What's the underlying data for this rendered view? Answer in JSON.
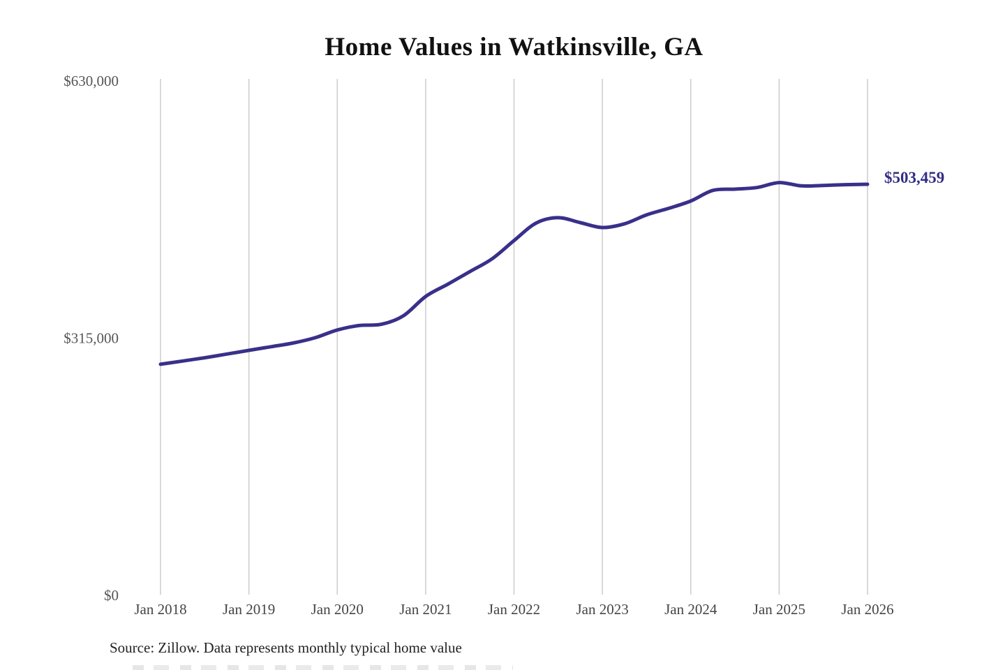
{
  "title": "Home Values in Watkinsville, GA",
  "source_note": "Source: Zillow. Data represents monthly typical home value",
  "colors": {
    "line": "#39308a",
    "end_label": "#312d83",
    "grid": "#cccccc",
    "y_tick_text": "#555555",
    "x_tick_text": "#454545",
    "title_text": "#111111",
    "source_text": "#222222",
    "background": "#ffffff"
  },
  "chart_data": {
    "type": "line",
    "title": "Home Values in Watkinsville, GA",
    "xlabel": "",
    "ylabel": "",
    "ylim": [
      0,
      630000
    ],
    "grid": "vertical-only",
    "legend_position": "none",
    "x_unit_months_since": "Jan 2018",
    "x_ticks": [
      "Jan 2018",
      "Jan 2019",
      "Jan 2020",
      "Jan 2021",
      "Jan 2022",
      "Jan 2023",
      "Jan 2024",
      "Jan 2025",
      "Jan 2026"
    ],
    "x_tick_month_index": [
      0,
      12,
      24,
      36,
      48,
      60,
      72,
      84,
      96
    ],
    "y_ticks": [
      {
        "label": "$0",
        "value": 0
      },
      {
        "label": "$315,000",
        "value": 315000
      },
      {
        "label": "$630,000",
        "value": 630000
      }
    ],
    "series": [
      {
        "name": "Monthly typical home value",
        "points": [
          [
            0,
            283000
          ],
          [
            3,
            287000
          ],
          [
            6,
            291000
          ],
          [
            9,
            295500
          ],
          [
            12,
            300000
          ],
          [
            15,
            304500
          ],
          [
            18,
            309000
          ],
          [
            21,
            315500
          ],
          [
            24,
            325000
          ],
          [
            27,
            330500
          ],
          [
            30,
            332000
          ],
          [
            33,
            342500
          ],
          [
            36,
            366000
          ],
          [
            39,
            381000
          ],
          [
            42,
            396500
          ],
          [
            45,
            412000
          ],
          [
            48,
            434500
          ],
          [
            51,
            456000
          ],
          [
            54,
            462500
          ],
          [
            57,
            456500
          ],
          [
            60,
            450500
          ],
          [
            63,
            455000
          ],
          [
            66,
            466000
          ],
          [
            69,
            474000
          ],
          [
            72,
            483000
          ],
          [
            75,
            496000
          ],
          [
            78,
            497500
          ],
          [
            81,
            499500
          ],
          [
            84,
            505500
          ],
          [
            87,
            501500
          ],
          [
            90,
            502000
          ],
          [
            93,
            503000
          ],
          [
            96,
            503459
          ]
        ]
      }
    ],
    "final_value": 503459,
    "final_value_label": "$503,459"
  }
}
